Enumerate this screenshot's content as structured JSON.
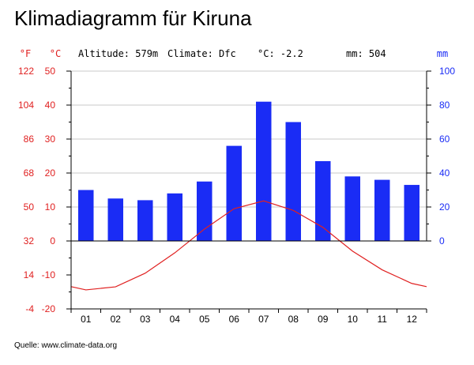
{
  "title": "Klimadiagramm für Kiruna",
  "source": "Quelle: www.climate-data.org",
  "stats": {
    "altitude": "Altitude: 579m",
    "climate": "Climate: Dfc",
    "avg_temp": "°C: -2.2",
    "precip": "mm: 504"
  },
  "colors": {
    "temperature": "#e02020",
    "precipitation": "#1a2cf5",
    "grid": "#c8c8c8",
    "text": "#000000"
  },
  "chart_data": {
    "type": "bar",
    "categories": [
      "01",
      "02",
      "03",
      "04",
      "05",
      "06",
      "07",
      "08",
      "09",
      "10",
      "11",
      "12"
    ],
    "series": [
      {
        "type": "bar",
        "axis": "mm",
        "values": [
          30,
          25,
          24,
          28,
          35,
          56,
          82,
          70,
          47,
          38,
          36,
          33
        ]
      },
      {
        "type": "line",
        "axis": "°C",
        "values": [
          -14.4,
          -13.5,
          -9.5,
          -3.5,
          3.5,
          9.5,
          11.8,
          9.0,
          4.0,
          -3.0,
          -8.5,
          -12.5
        ]
      }
    ],
    "axes": {
      "f_label": "°F",
      "c_label": "°C",
      "mm_label": "mm",
      "f_ticks": [
        "122",
        "104",
        "86",
        "68",
        "50",
        "32",
        "14",
        "-4"
      ],
      "c_ticks": [
        "50",
        "40",
        "30",
        "20",
        "10",
        "0",
        "-10",
        "-20"
      ],
      "mm_ticks": [
        "100",
        "80",
        "60",
        "40",
        "20",
        "0"
      ]
    },
    "c_range": [
      -20,
      50
    ],
    "mm_range": [
      0,
      100
    ],
    "grid": true
  }
}
